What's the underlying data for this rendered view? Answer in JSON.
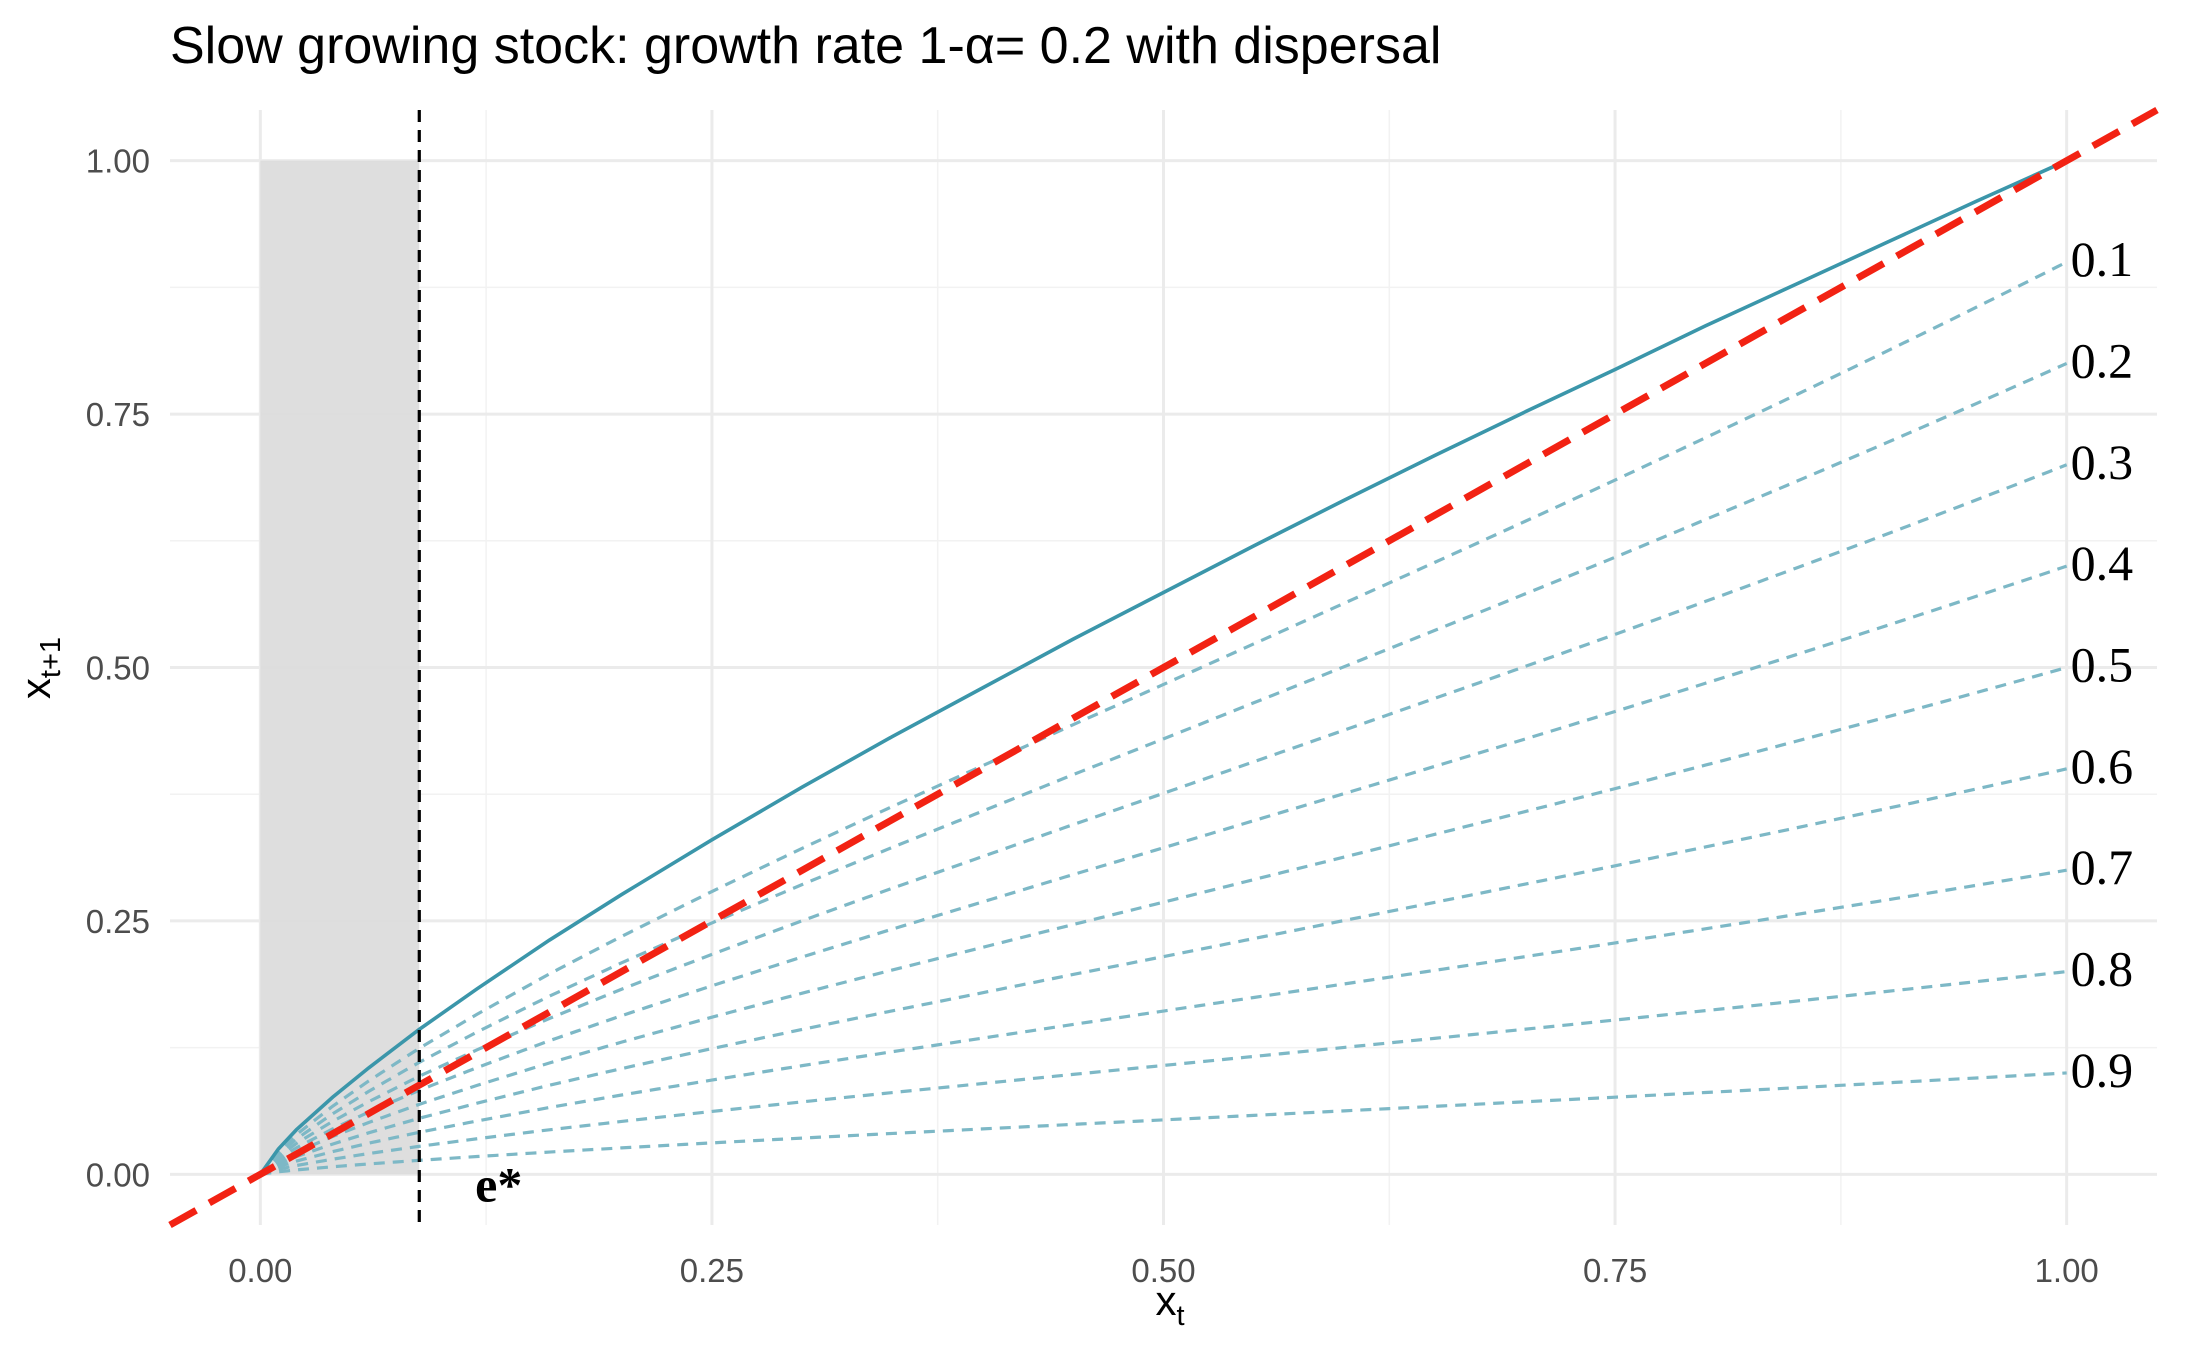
{
  "chart_data": {
    "type": "line",
    "title": "Slow growing stock: growth rate 1-α= 0.2 with dispersal",
    "xlabel": {
      "main": "x",
      "sub": "t"
    },
    "ylabel": {
      "main": "x",
      "sub": "t+1"
    },
    "xlim": [
      -0.05,
      1.05
    ],
    "ylim": [
      -0.05,
      1.05
    ],
    "xticks": [
      0,
      0.25,
      0.5,
      0.75,
      1
    ],
    "xtick_labels": [
      "0.00",
      "0.25",
      "0.50",
      "0.75",
      "1.00"
    ],
    "yticks": [
      0,
      0.25,
      0.5,
      0.75,
      1
    ],
    "ytick_labels": [
      "0.00",
      "0.25",
      "0.50",
      "0.75",
      "1.00"
    ],
    "grid": true,
    "alpha": 0.8,
    "shaded_region": {
      "x": [
        0,
        0.088
      ],
      "y": [
        0,
        1
      ],
      "color": "#dcdcdc"
    },
    "vline": {
      "x": 0.088,
      "style": "dashed",
      "color": "#000000"
    },
    "growth_curve": {
      "style": "solid",
      "color": "#3b96aa",
      "x": [
        0,
        0.01,
        0.02,
        0.04,
        0.06,
        0.088,
        0.12,
        0.16,
        0.2,
        0.25,
        0.3,
        0.35,
        0.4,
        0.45,
        0.5,
        0.55,
        0.6,
        0.65,
        0.7,
        0.75,
        0.8,
        0.85,
        0.9,
        0.95,
        1.0
      ],
      "y": [
        0,
        0.025,
        0.044,
        0.076,
        0.105,
        0.143,
        0.183,
        0.231,
        0.276,
        0.33,
        0.382,
        0.432,
        0.48,
        0.528,
        0.574,
        0.62,
        0.665,
        0.709,
        0.752,
        0.794,
        0.837,
        0.878,
        0.919,
        0.96,
        1.0
      ]
    },
    "identity_line": {
      "style": "dashed",
      "color": "#f22213",
      "x": [
        -0.05,
        1.05
      ],
      "y": [
        -0.05,
        1.05
      ]
    },
    "series": [
      {
        "name": "0.1",
        "harvest": 0.1,
        "color": "#7db8c6"
      },
      {
        "name": "0.2",
        "harvest": 0.2,
        "color": "#7db8c6"
      },
      {
        "name": "0.3",
        "harvest": 0.3,
        "color": "#7db8c6"
      },
      {
        "name": "0.4",
        "harvest": 0.4,
        "color": "#7db8c6"
      },
      {
        "name": "0.5",
        "harvest": 0.5,
        "color": "#7db8c6"
      },
      {
        "name": "0.6",
        "harvest": 0.6,
        "color": "#7db8c6"
      },
      {
        "name": "0.7",
        "harvest": 0.7,
        "color": "#7db8c6"
      },
      {
        "name": "0.8",
        "harvest": 0.8,
        "color": "#7db8c6"
      },
      {
        "name": "0.9",
        "harvest": 0.9,
        "color": "#7db8c6"
      }
    ],
    "annotations": [
      {
        "text": "e*",
        "x": 0.13,
        "y": -0.005
      }
    ]
  }
}
